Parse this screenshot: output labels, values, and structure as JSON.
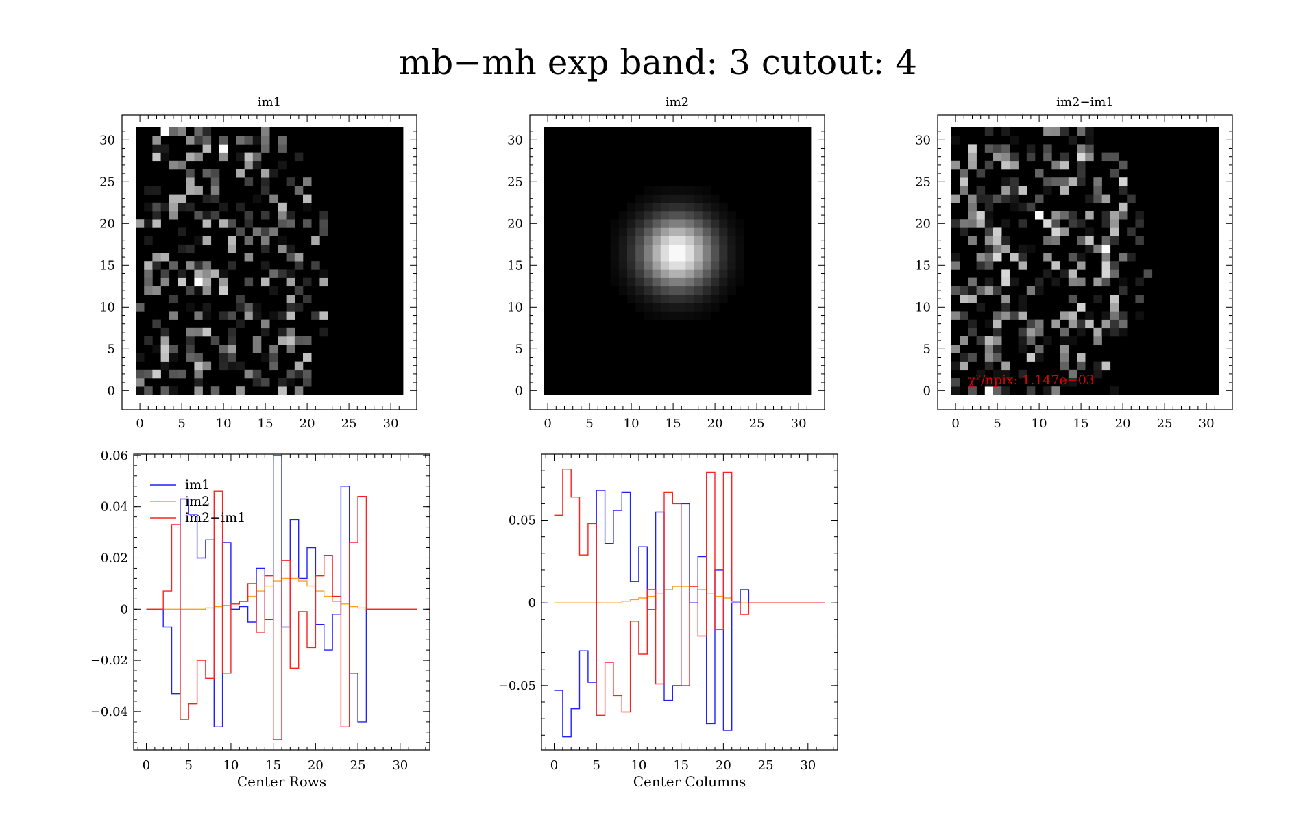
{
  "figure_title": "mb−mh exp band: 3 cutout: 4",
  "panel_titles": [
    "im1",
    "im2",
    "im2−im1"
  ],
  "image_ticks": [
    "0",
    "5",
    "10",
    "15",
    "20",
    "25",
    "30"
  ],
  "chi2_note": "χ²/npix: 1.147e−03",
  "colors": {
    "im1": "#2020ff",
    "im2": "#ffa020",
    "diff": "#ff2020",
    "note": "#e00000",
    "image_bg": "#000000"
  },
  "chart_data": [
    {
      "type": "heatmap",
      "title": "im1",
      "grid_size": 32,
      "xlim": [
        0,
        31
      ],
      "ylim": [
        0,
        31
      ],
      "content": "noise-like pixels confined to a region on the left"
    },
    {
      "type": "heatmap",
      "title": "im2",
      "grid_size": 32,
      "xlim": [
        0,
        31
      ],
      "ylim": [
        0,
        31
      ],
      "content": "smooth gaussian blob",
      "peak_xy": [
        15.5,
        16.5
      ]
    },
    {
      "type": "heatmap",
      "title": "im2−im1",
      "grid_size": 32,
      "xlim": [
        0,
        31
      ],
      "ylim": [
        0,
        31
      ],
      "annotation": "χ²/npix: 1.147e−03"
    },
    {
      "type": "line",
      "step": true,
      "xlabel": "Center Rows",
      "xlim": [
        -1.5,
        33.5
      ],
      "ylim": [
        -0.055,
        0.0605
      ],
      "xticks": [
        "0",
        "5",
        "10",
        "15",
        "20",
        "25",
        "30"
      ],
      "yticks": [
        {
          "v": 0.06,
          "t": "0.06"
        },
        {
          "v": 0.04,
          "t": "0.04"
        },
        {
          "v": 0.02,
          "t": "0.02"
        },
        {
          "v": 0,
          "t": "0"
        },
        {
          "v": -0.02,
          "t": "−0.02"
        },
        {
          "v": -0.04,
          "t": "−0.04"
        }
      ],
      "legend": [
        "im1",
        "im2",
        "im2−im1"
      ],
      "x": [
        0,
        1,
        2,
        3,
        4,
        5,
        6,
        7,
        8,
        9,
        10,
        11,
        12,
        13,
        14,
        15,
        16,
        17,
        18,
        19,
        20,
        21,
        22,
        23,
        24,
        25,
        26,
        27,
        28,
        29,
        30,
        31
      ],
      "series": [
        {
          "name": "im1",
          "values": [
            0,
            0,
            -0.007,
            -0.033,
            0.043,
            0.037,
            0.02,
            0.027,
            -0.046,
            0.026,
            0,
            0.001,
            -0.005,
            0.016,
            -0.004,
            0.06,
            -0.007,
            0.035,
            0.012,
            0.024,
            -0.006,
            -0.016,
            -0.002,
            0.048,
            -0.025,
            -0.044,
            0,
            0,
            0,
            0,
            0,
            0
          ]
        },
        {
          "name": "im2",
          "values": [
            0,
            0,
            0,
            0,
            0,
            0,
            0,
            0.0005,
            0.001,
            0.0015,
            0.002,
            0.003,
            0.005,
            0.007,
            0.009,
            0.011,
            0.012,
            0.012,
            0.011,
            0.009,
            0.007,
            0.005,
            0.003,
            0.002,
            0.001,
            0.0005,
            0,
            0,
            0,
            0,
            0,
            0
          ]
        },
        {
          "name": "im2−im1",
          "values": [
            0,
            0,
            0.007,
            0.033,
            -0.043,
            -0.037,
            -0.02,
            -0.027,
            0.046,
            -0.025,
            0.002,
            0.003,
            0.01,
            -0.009,
            0.013,
            -0.051,
            0.019,
            -0.023,
            -0.001,
            -0.015,
            0.013,
            0.021,
            0.005,
            -0.046,
            0.026,
            0.044,
            0,
            0,
            0,
            0,
            0,
            0
          ]
        }
      ]
    },
    {
      "type": "line",
      "step": true,
      "xlabel": "Center Columns",
      "xlim": [
        -1.5,
        33.5
      ],
      "ylim": [
        -0.089,
        0.09
      ],
      "xticks": [
        "0",
        "5",
        "10",
        "15",
        "20",
        "25",
        "30"
      ],
      "yticks": [
        {
          "v": 0.05,
          "t": "0.05"
        },
        {
          "v": 0,
          "t": "0"
        },
        {
          "v": -0.05,
          "t": "−0.05"
        }
      ],
      "x": [
        0,
        1,
        2,
        3,
        4,
        5,
        6,
        7,
        8,
        9,
        10,
        11,
        12,
        13,
        14,
        15,
        16,
        17,
        18,
        19,
        20,
        21,
        22,
        23,
        24,
        25,
        26,
        27,
        28,
        29,
        30,
        31
      ],
      "series": [
        {
          "name": "im1",
          "values": [
            -0.053,
            -0.081,
            -0.064,
            -0.029,
            -0.048,
            0.068,
            0.036,
            0.056,
            0.067,
            0.013,
            0.034,
            -0.004,
            0.055,
            -0.059,
            -0.05,
            0.06,
            0,
            0.028,
            -0.073,
            0.02,
            -0.077,
            0,
            0.008,
            0,
            0,
            0,
            0,
            0,
            0,
            0,
            0,
            0
          ]
        },
        {
          "name": "im2",
          "values": [
            0,
            0,
            0,
            0,
            0,
            0,
            0,
            0,
            0.001,
            0.002,
            0.003,
            0.004,
            0.006,
            0.008,
            0.01,
            0.01,
            0.01,
            0.008,
            0.006,
            0.004,
            0.003,
            0.001,
            0,
            0,
            0,
            0,
            0,
            0,
            0,
            0,
            0,
            0
          ]
        },
        {
          "name": "im2−im1",
          "values": [
            0.053,
            0.081,
            0.064,
            0.029,
            0.048,
            -0.068,
            -0.036,
            -0.056,
            -0.066,
            -0.011,
            -0.031,
            0.008,
            -0.049,
            0.067,
            0.06,
            -0.05,
            0.01,
            -0.02,
            0.079,
            -0.016,
            0.079,
            0.001,
            -0.007,
            0,
            0,
            0,
            0,
            0,
            0,
            0,
            0,
            0
          ]
        }
      ]
    }
  ]
}
